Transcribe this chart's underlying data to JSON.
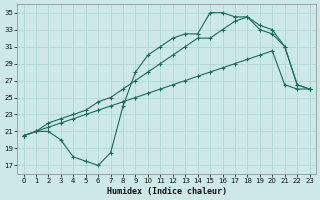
{
  "xlabel": "Humidex (Indice chaleur)",
  "xlim": [
    -0.5,
    23.5
  ],
  "ylim": [
    16,
    36
  ],
  "yticks": [
    17,
    19,
    21,
    23,
    25,
    27,
    29,
    31,
    33,
    35
  ],
  "xticks": [
    0,
    1,
    2,
    3,
    4,
    5,
    6,
    7,
    8,
    9,
    10,
    11,
    12,
    13,
    14,
    15,
    16,
    17,
    18,
    19,
    20,
    21,
    22,
    23
  ],
  "bg_color": "#cce9e7",
  "line_color": "#1a6b5a",
  "grid_color": "#aad4d0",
  "line1_x": [
    0,
    1,
    2,
    3,
    4,
    5,
    6,
    7,
    8,
    9,
    10,
    11,
    12,
    13,
    14,
    15,
    16,
    17,
    18,
    19,
    20,
    21,
    22,
    23
  ],
  "line1_y": [
    20.5,
    21.0,
    21.0,
    20.0,
    18.0,
    17.5,
    17.0,
    18.5,
    24.0,
    28.0,
    30.0,
    31.0,
    32.0,
    32.5,
    32.5,
    35.0,
    35.0,
    34.5,
    34.5,
    33.0,
    32.5,
    31.0,
    26.5,
    26.0
  ],
  "line2_x": [
    0,
    1,
    2,
    3,
    4,
    5,
    6,
    7,
    8,
    9,
    10,
    11,
    12,
    13,
    14,
    15,
    16,
    17,
    18,
    19,
    20,
    21,
    22,
    23
  ],
  "line2_y": [
    20.5,
    21.0,
    22.0,
    22.5,
    23.0,
    23.5,
    24.5,
    25.0,
    26.0,
    27.0,
    28.0,
    29.0,
    30.0,
    31.0,
    32.0,
    32.0,
    33.0,
    34.0,
    34.5,
    33.5,
    33.0,
    31.0,
    26.5,
    26.0
  ],
  "line3_x": [
    0,
    1,
    2,
    3,
    4,
    5,
    6,
    7,
    8,
    9,
    10,
    11,
    12,
    13,
    14,
    15,
    16,
    17,
    18,
    19,
    20,
    21,
    22,
    23
  ],
  "line3_y": [
    20.5,
    21.0,
    21.5,
    22.0,
    22.5,
    23.0,
    23.5,
    24.0,
    24.5,
    25.0,
    25.5,
    26.0,
    26.5,
    27.0,
    27.5,
    28.0,
    28.5,
    29.0,
    29.5,
    30.0,
    30.5,
    26.5,
    26.0,
    26.0
  ]
}
